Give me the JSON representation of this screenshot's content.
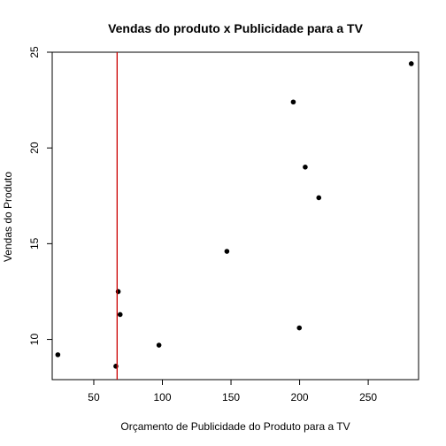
{
  "chart_data": {
    "type": "scatter",
    "title": "Vendas do produto x Publicidade para a TV",
    "xlabel": "Orçamento de Publicidade do Produto para a TV",
    "ylabel": "Vendas do Produto",
    "xlim": [
      19.7,
      286.7
    ],
    "ylim": [
      7.9,
      25.0
    ],
    "x_ticks": [
      50,
      100,
      150,
      200,
      250
    ],
    "y_ticks": [
      10,
      15,
      20,
      25
    ],
    "grid": false,
    "points": [
      {
        "x": 23.8,
        "y": 9.2
      },
      {
        "x": 66.1,
        "y": 8.6
      },
      {
        "x": 67.8,
        "y": 12.5
      },
      {
        "x": 69.2,
        "y": 11.3
      },
      {
        "x": 97.5,
        "y": 9.7
      },
      {
        "x": 147.0,
        "y": 14.6
      },
      {
        "x": 195.4,
        "y": 22.4
      },
      {
        "x": 199.8,
        "y": 10.6
      },
      {
        "x": 204.1,
        "y": 19.0
      },
      {
        "x": 214.0,
        "y": 17.4
      },
      {
        "x": 281.4,
        "y": 24.4
      }
    ],
    "vline": {
      "x": 67.0,
      "color": "#cc0000"
    },
    "point_color": "#000000"
  }
}
